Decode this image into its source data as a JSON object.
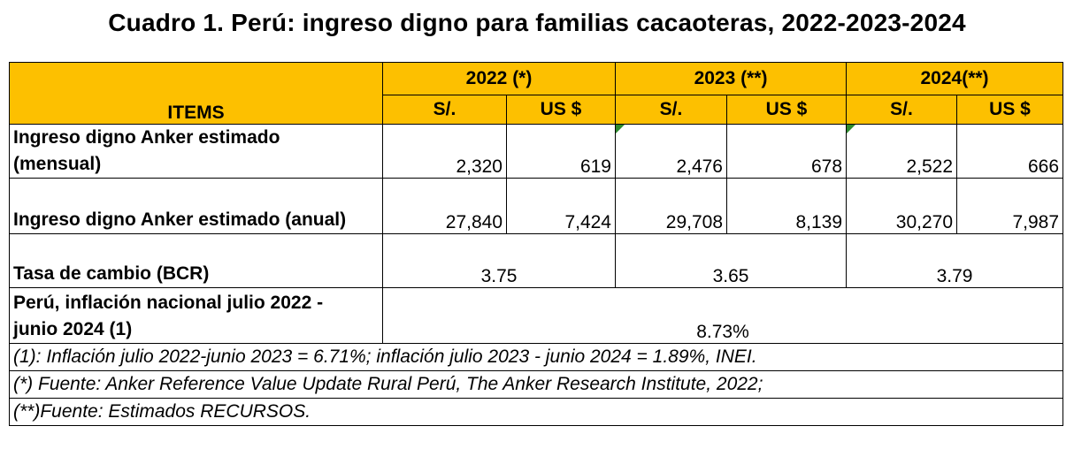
{
  "title": "Cuadro 1. Perú: ingreso digno para familias cacaoteras, 2022-2023-2024",
  "header": {
    "items": "ITEMS",
    "years": [
      "2022 (*)",
      "2023 (**)",
      "2024(**)"
    ],
    "currencies": [
      "S/.",
      "US $",
      "S/.",
      "US $",
      "S/.",
      "US $"
    ]
  },
  "rows": {
    "mensual": {
      "label_line1": "Ingreso digno Anker estimado",
      "label_line2": "(mensual)",
      "values": [
        "2,320",
        "619",
        "2,476",
        "678",
        "2,522",
        "666"
      ]
    },
    "anual": {
      "label": "Ingreso digno Anker estimado (anual)",
      "values": [
        "27,840",
        "7,424",
        "29,708",
        "8,139",
        "30,270",
        "7,987"
      ]
    },
    "tasa": {
      "label": "Tasa de cambio (BCR)",
      "values": [
        "3.75",
        "3.65",
        "3.79"
      ]
    },
    "inflacion": {
      "label_line1": "Perú, inflación nacional julio 2022 -",
      "label_line2": "junio 2024 (1)",
      "value": "8.73%"
    }
  },
  "notes": [
    "(1): Inflación julio 2022-junio 2023 = 6.71%; inflación julio 2023 - junio 2024 = 1.89%, INEI.",
    "(*) Fuente: Anker Reference Value Update Rural Perú, The Anker Research Institute, 2022;",
    "(**)Fuente: Estimados RECURSOS."
  ],
  "colors": {
    "header_bg": "#fdc000",
    "comment_marker": "#2e8b2e"
  }
}
